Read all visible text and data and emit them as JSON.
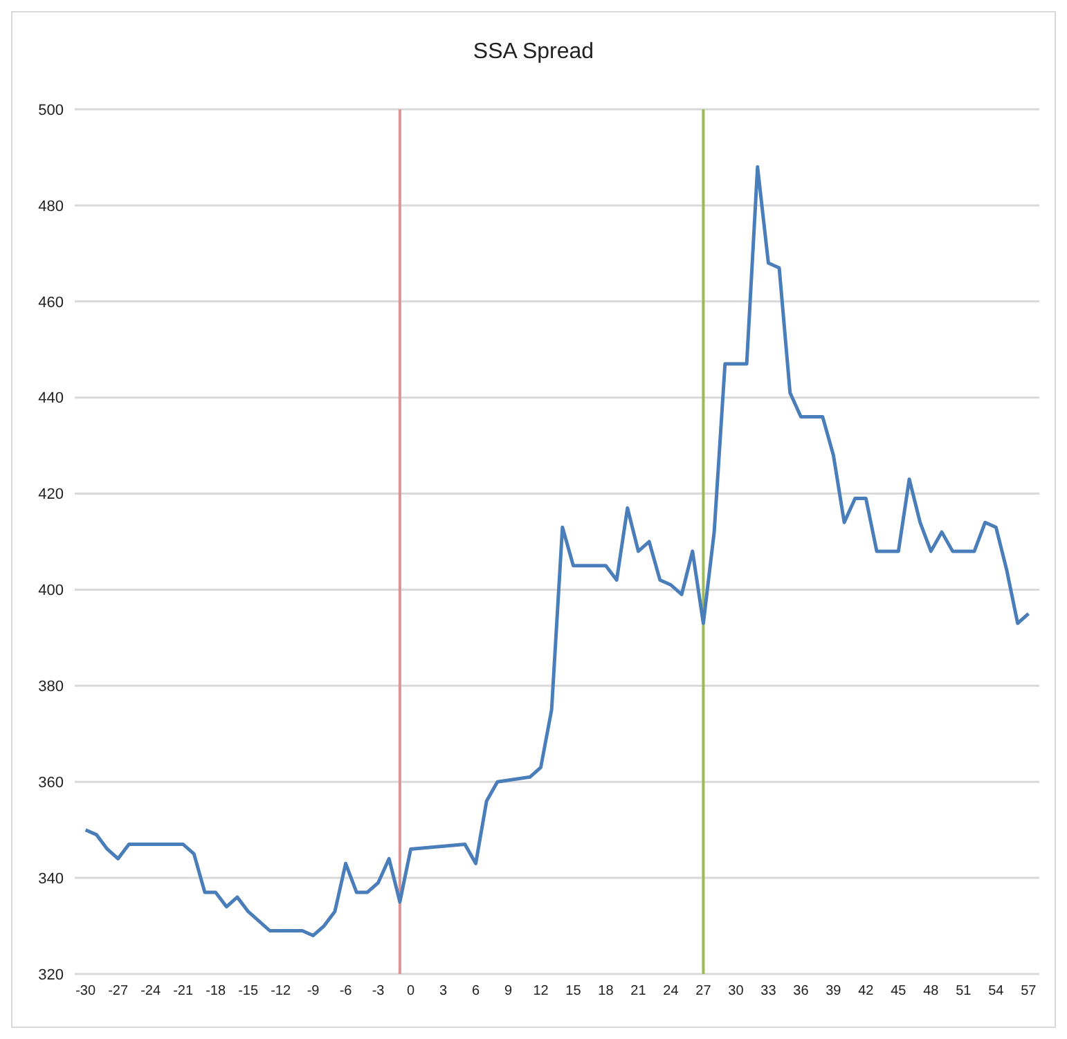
{
  "chart_data": {
    "type": "line",
    "title": "SSA Spread",
    "x": [
      -30,
      -29,
      -28,
      -27,
      -26,
      -21,
      -20,
      -19,
      -18,
      -17,
      -16,
      -15,
      -13,
      -10,
      -9,
      -8,
      -7,
      -6,
      -5,
      -4,
      -3,
      -2,
      -1,
      0,
      5,
      6,
      7,
      8,
      11,
      12,
      13,
      14,
      15,
      18,
      19,
      20,
      21,
      22,
      23,
      24,
      25,
      26,
      27,
      28,
      29,
      31,
      32,
      33,
      34,
      35,
      36,
      38,
      39,
      40,
      41,
      42,
      43,
      45,
      46,
      47,
      48,
      49,
      50,
      52,
      53,
      54,
      55,
      56,
      57
    ],
    "series": [
      {
        "color": "#4a7ebb",
        "values": [
          350,
          349,
          346,
          344,
          347,
          347,
          345,
          337,
          337,
          334,
          336,
          333,
          329,
          329,
          328,
          330,
          333,
          343,
          337,
          337,
          339,
          344,
          335,
          346,
          347,
          343,
          356,
          360,
          361,
          363,
          375,
          413,
          405,
          405,
          402,
          417,
          408,
          410,
          402,
          401,
          399,
          408,
          393,
          412,
          447,
          447,
          488,
          468,
          467,
          441,
          436,
          436,
          428,
          414,
          419,
          419,
          408,
          408,
          423,
          414,
          408,
          412,
          408,
          408,
          414,
          413,
          404,
          393,
          395
        ]
      }
    ],
    "xlim": [
      -31,
      58
    ],
    "xticks": [
      -30,
      -27,
      -24,
      -21,
      -18,
      -15,
      -12,
      -9,
      -6,
      -3,
      0,
      3,
      6,
      9,
      12,
      15,
      18,
      21,
      24,
      27,
      30,
      33,
      36,
      39,
      42,
      45,
      48,
      51,
      54,
      57
    ],
    "ylim": [
      320,
      500
    ],
    "yticks": [
      320,
      340,
      360,
      380,
      400,
      420,
      440,
      460,
      480,
      500
    ],
    "grid": "y",
    "legend": false,
    "marker": "none",
    "line_style": "solid",
    "ref_lines": [
      {
        "axis": "x",
        "value": -1,
        "color": "#d99694"
      },
      {
        "axis": "x",
        "value": 27,
        "color": "#9bbb59"
      }
    ]
  }
}
